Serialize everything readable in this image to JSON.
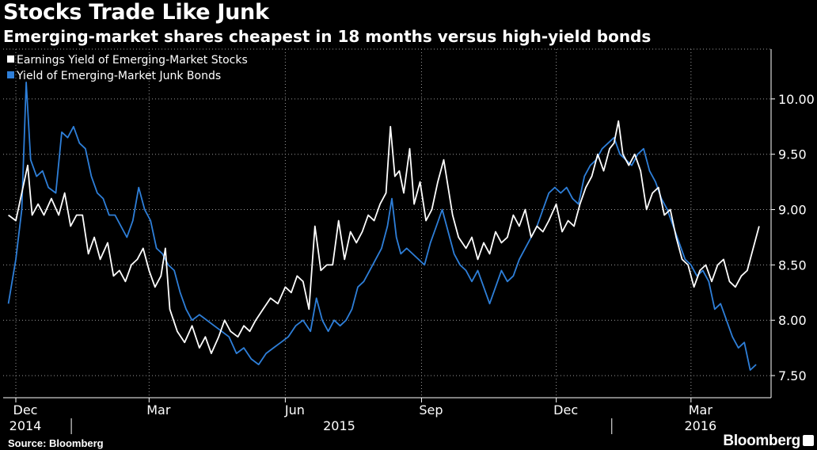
{
  "title": "Stocks Trade Like Junk",
  "subtitle": "Emerging-market shares cheapest in 18 months versus high-yield bonds",
  "source": "Source: Bloomberg",
  "brand": "Bloomberg",
  "colors": {
    "background": "#000000",
    "stocks": "#ffffff",
    "bonds": "#2e7fd9",
    "grid": "#9a9a9a"
  },
  "chart_data": {
    "type": "line",
    "ylim": [
      7.3,
      10.45
    ],
    "yticks": [
      "10.00",
      "9.50",
      "9.00",
      "8.50",
      "8.00",
      "7.50"
    ],
    "ytick_values": [
      10.0,
      9.5,
      9.0,
      8.5,
      8.0,
      7.5
    ],
    "x_range": [
      "2014-12-01",
      "2016-04-15"
    ],
    "x_month_labels": [
      {
        "label": "Dec",
        "date": "2014-12-01"
      },
      {
        "label": "Mar",
        "date": "2015-03-01"
      },
      {
        "label": "Jun",
        "date": "2015-06-01"
      },
      {
        "label": "Sep",
        "date": "2015-09-01"
      },
      {
        "label": "Dec",
        "date": "2015-12-01"
      },
      {
        "label": "Mar",
        "date": "2016-03-01"
      }
    ],
    "x_year_labels": [
      {
        "label": "2014",
        "date": "2014-12-01"
      },
      {
        "label": "2015",
        "date": "2015-07-01"
      },
      {
        "label": "2016",
        "date": "2016-03-01"
      }
    ],
    "legend_position": "top-left",
    "grid": true,
    "series": [
      {
        "name": "Earnings Yield of Emerging-Market Stocks",
        "color": "#ffffff",
        "points": [
          [
            "2014-11-26",
            8.95
          ],
          [
            "2014-12-01",
            8.9
          ],
          [
            "2014-12-05",
            9.15
          ],
          [
            "2014-12-09",
            9.4
          ],
          [
            "2014-12-12",
            8.95
          ],
          [
            "2014-12-16",
            9.05
          ],
          [
            "2014-12-20",
            8.95
          ],
          [
            "2014-12-25",
            9.1
          ],
          [
            "2014-12-30",
            8.95
          ],
          [
            "2015-01-03",
            9.15
          ],
          [
            "2015-01-07",
            8.85
          ],
          [
            "2015-01-11",
            8.95
          ],
          [
            "2015-01-15",
            8.95
          ],
          [
            "2015-01-19",
            8.6
          ],
          [
            "2015-01-23",
            8.75
          ],
          [
            "2015-01-27",
            8.55
          ],
          [
            "2015-02-01",
            8.7
          ],
          [
            "2015-02-05",
            8.4
          ],
          [
            "2015-02-09",
            8.45
          ],
          [
            "2015-02-13",
            8.35
          ],
          [
            "2015-02-17",
            8.5
          ],
          [
            "2015-02-21",
            8.55
          ],
          [
            "2015-02-25",
            8.65
          ],
          [
            "2015-03-01",
            8.45
          ],
          [
            "2015-03-05",
            8.3
          ],
          [
            "2015-03-09",
            8.4
          ],
          [
            "2015-03-12",
            8.65
          ],
          [
            "2015-03-15",
            8.1
          ],
          [
            "2015-03-20",
            7.9
          ],
          [
            "2015-03-25",
            7.8
          ],
          [
            "2015-03-30",
            7.95
          ],
          [
            "2015-04-04",
            7.75
          ],
          [
            "2015-04-08",
            7.85
          ],
          [
            "2015-04-12",
            7.7
          ],
          [
            "2015-04-17",
            7.85
          ],
          [
            "2015-04-21",
            8.0
          ],
          [
            "2015-04-25",
            7.9
          ],
          [
            "2015-04-30",
            7.85
          ],
          [
            "2015-05-04",
            7.95
          ],
          [
            "2015-05-08",
            7.9
          ],
          [
            "2015-05-12",
            8.0
          ],
          [
            "2015-05-17",
            8.1
          ],
          [
            "2015-05-22",
            8.2
          ],
          [
            "2015-05-27",
            8.15
          ],
          [
            "2015-06-01",
            8.3
          ],
          [
            "2015-06-05",
            8.25
          ],
          [
            "2015-06-09",
            8.4
          ],
          [
            "2015-06-13",
            8.35
          ],
          [
            "2015-06-17",
            8.1
          ],
          [
            "2015-06-21",
            8.85
          ],
          [
            "2015-06-25",
            8.45
          ],
          [
            "2015-06-29",
            8.5
          ],
          [
            "2015-07-03",
            8.5
          ],
          [
            "2015-07-07",
            8.9
          ],
          [
            "2015-07-11",
            8.55
          ],
          [
            "2015-07-15",
            8.8
          ],
          [
            "2015-07-19",
            8.7
          ],
          [
            "2015-07-23",
            8.8
          ],
          [
            "2015-07-27",
            8.95
          ],
          [
            "2015-07-31",
            8.9
          ],
          [
            "2015-08-04",
            9.05
          ],
          [
            "2015-08-08",
            9.15
          ],
          [
            "2015-08-11",
            9.75
          ],
          [
            "2015-08-14",
            9.3
          ],
          [
            "2015-08-17",
            9.35
          ],
          [
            "2015-08-20",
            9.15
          ],
          [
            "2015-08-24",
            9.55
          ],
          [
            "2015-08-27",
            9.05
          ],
          [
            "2015-08-31",
            9.25
          ],
          [
            "2015-09-04",
            8.9
          ],
          [
            "2015-09-08",
            9.0
          ],
          [
            "2015-09-12",
            9.25
          ],
          [
            "2015-09-16",
            9.45
          ],
          [
            "2015-09-19",
            9.2
          ],
          [
            "2015-09-22",
            8.95
          ],
          [
            "2015-09-26",
            8.75
          ],
          [
            "2015-10-01",
            8.65
          ],
          [
            "2015-10-05",
            8.75
          ],
          [
            "2015-10-09",
            8.55
          ],
          [
            "2015-10-13",
            8.7
          ],
          [
            "2015-10-17",
            8.6
          ],
          [
            "2015-10-21",
            8.8
          ],
          [
            "2015-10-25",
            8.7
          ],
          [
            "2015-10-29",
            8.75
          ],
          [
            "2015-11-02",
            8.95
          ],
          [
            "2015-11-06",
            8.85
          ],
          [
            "2015-11-10",
            9.0
          ],
          [
            "2015-11-14",
            8.75
          ],
          [
            "2015-11-18",
            8.85
          ],
          [
            "2015-11-22",
            8.8
          ],
          [
            "2015-11-26",
            8.9
          ],
          [
            "2015-12-01",
            9.05
          ],
          [
            "2015-12-05",
            8.8
          ],
          [
            "2015-12-09",
            8.9
          ],
          [
            "2015-12-13",
            8.85
          ],
          [
            "2015-12-17",
            9.05
          ],
          [
            "2015-12-21",
            9.2
          ],
          [
            "2015-12-25",
            9.3
          ],
          [
            "2015-12-29",
            9.5
          ],
          [
            "2016-01-02",
            9.35
          ],
          [
            "2016-01-06",
            9.55
          ],
          [
            "2016-01-09",
            9.6
          ],
          [
            "2016-01-12",
            9.8
          ],
          [
            "2016-01-15",
            9.5
          ],
          [
            "2016-01-19",
            9.4
          ],
          [
            "2016-01-23",
            9.5
          ],
          [
            "2016-01-27",
            9.35
          ],
          [
            "2016-01-31",
            9.0
          ],
          [
            "2016-02-04",
            9.15
          ],
          [
            "2016-02-08",
            9.2
          ],
          [
            "2016-02-12",
            8.95
          ],
          [
            "2016-02-16",
            9.0
          ],
          [
            "2016-02-20",
            8.75
          ],
          [
            "2016-02-24",
            8.55
          ],
          [
            "2016-02-28",
            8.5
          ],
          [
            "2016-03-03",
            8.3
          ],
          [
            "2016-03-07",
            8.45
          ],
          [
            "2016-03-11",
            8.5
          ],
          [
            "2016-03-15",
            8.35
          ],
          [
            "2016-03-19",
            8.5
          ],
          [
            "2016-03-23",
            8.55
          ],
          [
            "2016-03-27",
            8.35
          ],
          [
            "2016-03-31",
            8.3
          ],
          [
            "2016-04-04",
            8.4
          ],
          [
            "2016-04-08",
            8.45
          ],
          [
            "2016-04-12",
            8.65
          ],
          [
            "2016-04-16",
            8.85
          ]
        ]
      },
      {
        "name": "Yield of Emerging-Market Junk Bonds",
        "color": "#2e7fd9",
        "points": [
          [
            "2014-11-26",
            8.15
          ],
          [
            "2014-12-01",
            8.55
          ],
          [
            "2014-12-05",
            9.0
          ],
          [
            "2014-12-08",
            10.15
          ],
          [
            "2014-12-11",
            9.45
          ],
          [
            "2014-12-15",
            9.3
          ],
          [
            "2014-12-19",
            9.35
          ],
          [
            "2014-12-23",
            9.2
          ],
          [
            "2014-12-28",
            9.15
          ],
          [
            "2015-01-01",
            9.7
          ],
          [
            "2015-01-05",
            9.65
          ],
          [
            "2015-01-09",
            9.75
          ],
          [
            "2015-01-13",
            9.6
          ],
          [
            "2015-01-17",
            9.55
          ],
          [
            "2015-01-21",
            9.3
          ],
          [
            "2015-01-25",
            9.15
          ],
          [
            "2015-01-29",
            9.1
          ],
          [
            "2015-02-02",
            8.95
          ],
          [
            "2015-02-06",
            8.95
          ],
          [
            "2015-02-10",
            8.85
          ],
          [
            "2015-02-14",
            8.75
          ],
          [
            "2015-02-18",
            8.9
          ],
          [
            "2015-02-22",
            9.2
          ],
          [
            "2015-02-26",
            9.0
          ],
          [
            "2015-03-02",
            8.9
          ],
          [
            "2015-03-06",
            8.65
          ],
          [
            "2015-03-10",
            8.6
          ],
          [
            "2015-03-14",
            8.5
          ],
          [
            "2015-03-18",
            8.45
          ],
          [
            "2015-03-22",
            8.25
          ],
          [
            "2015-03-26",
            8.1
          ],
          [
            "2015-03-30",
            8.0
          ],
          [
            "2015-04-04",
            8.05
          ],
          [
            "2015-04-09",
            8.0
          ],
          [
            "2015-04-14",
            7.95
          ],
          [
            "2015-04-19",
            7.9
          ],
          [
            "2015-04-24",
            7.85
          ],
          [
            "2015-04-29",
            7.7
          ],
          [
            "2015-05-04",
            7.75
          ],
          [
            "2015-05-09",
            7.65
          ],
          [
            "2015-05-14",
            7.6
          ],
          [
            "2015-05-19",
            7.7
          ],
          [
            "2015-05-24",
            7.75
          ],
          [
            "2015-05-29",
            7.8
          ],
          [
            "2015-06-03",
            7.85
          ],
          [
            "2015-06-08",
            7.95
          ],
          [
            "2015-06-13",
            8.0
          ],
          [
            "2015-06-18",
            7.9
          ],
          [
            "2015-06-22",
            8.2
          ],
          [
            "2015-06-26",
            8.0
          ],
          [
            "2015-06-30",
            7.9
          ],
          [
            "2015-07-04",
            8.0
          ],
          [
            "2015-07-08",
            7.95
          ],
          [
            "2015-07-12",
            8.0
          ],
          [
            "2015-07-16",
            8.1
          ],
          [
            "2015-07-20",
            8.3
          ],
          [
            "2015-07-24",
            8.35
          ],
          [
            "2015-07-28",
            8.45
          ],
          [
            "2015-08-01",
            8.55
          ],
          [
            "2015-08-05",
            8.65
          ],
          [
            "2015-08-09",
            8.85
          ],
          [
            "2015-08-12",
            9.1
          ],
          [
            "2015-08-15",
            8.75
          ],
          [
            "2015-08-18",
            8.6
          ],
          [
            "2015-08-22",
            8.65
          ],
          [
            "2015-08-26",
            8.6
          ],
          [
            "2015-08-30",
            8.55
          ],
          [
            "2015-09-03",
            8.5
          ],
          [
            "2015-09-07",
            8.7
          ],
          [
            "2015-09-11",
            8.85
          ],
          [
            "2015-09-15",
            9.0
          ],
          [
            "2015-09-19",
            8.8
          ],
          [
            "2015-09-23",
            8.6
          ],
          [
            "2015-09-27",
            8.5
          ],
          [
            "2015-10-01",
            8.45
          ],
          [
            "2015-10-05",
            8.35
          ],
          [
            "2015-10-09",
            8.45
          ],
          [
            "2015-10-13",
            8.3
          ],
          [
            "2015-10-17",
            8.15
          ],
          [
            "2015-10-21",
            8.3
          ],
          [
            "2015-10-25",
            8.45
          ],
          [
            "2015-10-29",
            8.35
          ],
          [
            "2015-11-02",
            8.4
          ],
          [
            "2015-11-06",
            8.55
          ],
          [
            "2015-11-10",
            8.65
          ],
          [
            "2015-11-14",
            8.75
          ],
          [
            "2015-11-18",
            8.85
          ],
          [
            "2015-11-22",
            9.0
          ],
          [
            "2015-11-26",
            9.15
          ],
          [
            "2015-11-30",
            9.2
          ],
          [
            "2015-12-04",
            9.15
          ],
          [
            "2015-12-08",
            9.2
          ],
          [
            "2015-12-12",
            9.1
          ],
          [
            "2015-12-16",
            9.05
          ],
          [
            "2015-12-20",
            9.3
          ],
          [
            "2015-12-24",
            9.4
          ],
          [
            "2015-12-28",
            9.45
          ],
          [
            "2016-01-01",
            9.55
          ],
          [
            "2016-01-05",
            9.6
          ],
          [
            "2016-01-09",
            9.65
          ],
          [
            "2016-01-13",
            9.5
          ],
          [
            "2016-01-17",
            9.45
          ],
          [
            "2016-01-21",
            9.4
          ],
          [
            "2016-01-25",
            9.5
          ],
          [
            "2016-01-29",
            9.55
          ],
          [
            "2016-02-02",
            9.35
          ],
          [
            "2016-02-06",
            9.25
          ],
          [
            "2016-02-10",
            9.1
          ],
          [
            "2016-02-14",
            9.0
          ],
          [
            "2016-02-18",
            8.85
          ],
          [
            "2016-02-22",
            8.7
          ],
          [
            "2016-02-26",
            8.55
          ],
          [
            "2016-03-01",
            8.5
          ],
          [
            "2016-03-05",
            8.4
          ],
          [
            "2016-03-09",
            8.45
          ],
          [
            "2016-03-13",
            8.35
          ],
          [
            "2016-03-17",
            8.1
          ],
          [
            "2016-03-21",
            8.15
          ],
          [
            "2016-03-25",
            8.0
          ],
          [
            "2016-03-29",
            7.85
          ],
          [
            "2016-04-02",
            7.75
          ],
          [
            "2016-04-06",
            7.8
          ],
          [
            "2016-04-10",
            7.55
          ],
          [
            "2016-04-14",
            7.6
          ]
        ]
      }
    ]
  }
}
